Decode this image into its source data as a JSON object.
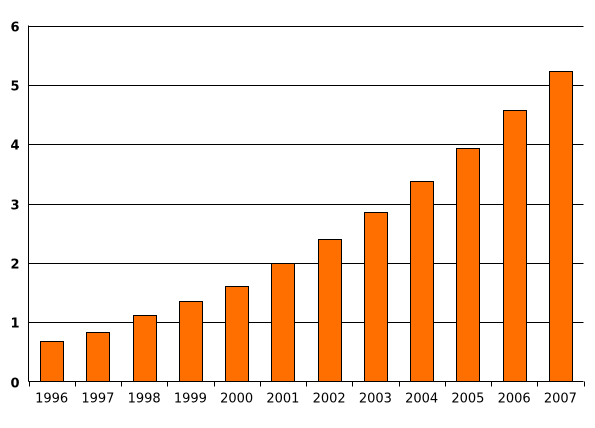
{
  "chart_data": {
    "type": "bar",
    "categories": [
      "1996",
      "1997",
      "1998",
      "1999",
      "2000",
      "2001",
      "2002",
      "2003",
      "2004",
      "2005",
      "2006",
      "2007"
    ],
    "values": [
      0.69,
      0.84,
      1.12,
      1.36,
      1.61,
      2.0,
      2.41,
      2.85,
      3.38,
      3.93,
      4.57,
      5.24
    ],
    "title": "",
    "xlabel": "",
    "ylabel": "",
    "ylim": [
      0,
      6
    ],
    "yticks": [
      "0",
      "1",
      "2",
      "3",
      "4",
      "5",
      "6"
    ],
    "grid": true,
    "bar_color": "#ff6f00"
  }
}
